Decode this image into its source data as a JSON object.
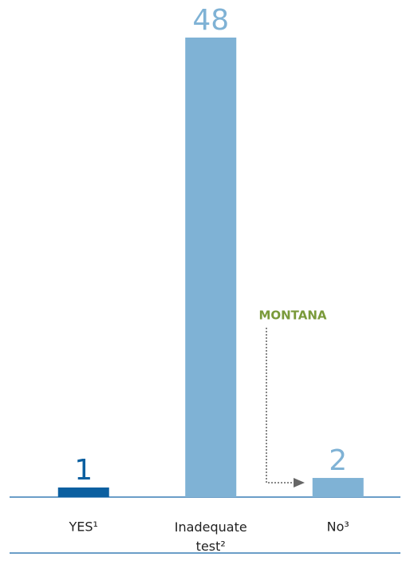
{
  "chart_data": {
    "type": "bar",
    "categories": [
      "YES¹",
      "Inadequate test²",
      "No³"
    ],
    "values": [
      1,
      48,
      2
    ],
    "colors": [
      "#0b5fa0",
      "#7fb2d5",
      "#7fb2d5"
    ],
    "ylim": [
      0,
      48
    ],
    "annotation": "MONTANA"
  }
}
